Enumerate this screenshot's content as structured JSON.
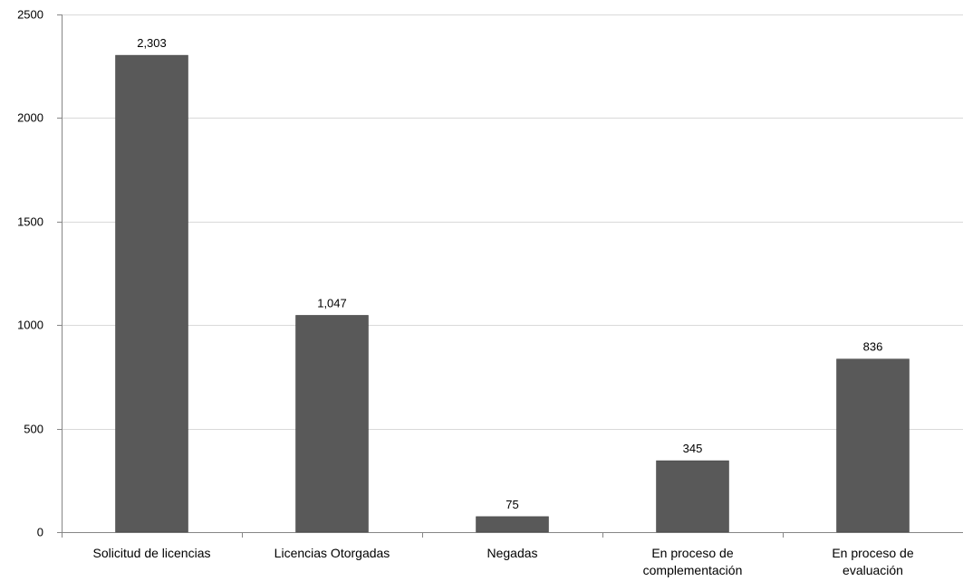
{
  "chart_data": {
    "type": "bar",
    "categories": [
      "Solicitud de licencias",
      "Licencias Otorgadas",
      "Negadas",
      "En proceso de complementación",
      "En proceso de evaluación"
    ],
    "category_lines": [
      [
        "Solicitud de licencias"
      ],
      [
        "Licencias Otorgadas"
      ],
      [
        "Negadas"
      ],
      [
        "En proceso de",
        "complementación"
      ],
      [
        "En proceso de",
        "evaluación"
      ]
    ],
    "values": [
      2303,
      1047,
      75,
      345,
      836
    ],
    "data_labels": [
      "2,303",
      "1,047",
      "75",
      "345",
      "836"
    ],
    "yticks": [
      0,
      500,
      1000,
      1500,
      2000,
      2500
    ],
    "ylim": [
      0,
      2500
    ],
    "grid": true,
    "legend": "none",
    "bar_color": "#595959"
  }
}
